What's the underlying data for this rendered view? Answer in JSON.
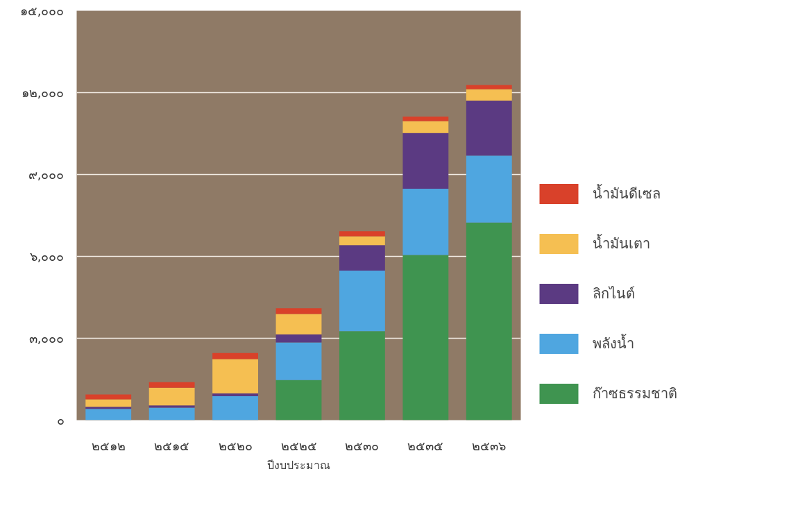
{
  "chart_data": {
    "type": "bar",
    "stacked": true,
    "xlabel": "ปีงบประมาณ",
    "categories": [
      "๒๕๑๒",
      "๒๕๑๕",
      "๒๕๒๐",
      "๒๕๒๕",
      "๒๕๓๐",
      "๒๕๓๕",
      "๒๕๓๖"
    ],
    "series": [
      {
        "name": "ก๊าซธรรมชาติ",
        "color": "#3f9450",
        "values": [
          0,
          0,
          0,
          1470,
          3260,
          6050,
          7240
        ]
      },
      {
        "name": "พลังน้ำ",
        "color": "#4fa6e0",
        "values": [
          410,
          460,
          880,
          1380,
          2220,
          2430,
          2450
        ]
      },
      {
        "name": "ลิกไนต์",
        "color": "#5b3a82",
        "values": [
          80,
          80,
          100,
          290,
          930,
          2040,
          2020
        ]
      },
      {
        "name": "น้ำมันเตา",
        "color": "#f5bf52",
        "values": [
          270,
          650,
          1260,
          750,
          330,
          440,
          420
        ]
      },
      {
        "name": "น้ำมันดีเซล",
        "color": "#d9412a",
        "values": [
          180,
          200,
          220,
          210,
          180,
          160,
          150
        ]
      }
    ],
    "ylim": [
      0,
      15000
    ],
    "yticks": [
      {
        "value": 0,
        "label": "๐"
      },
      {
        "value": 3000,
        "label": "๓,๐๐๐"
      },
      {
        "value": 6000,
        "label": "๖,๐๐๐"
      },
      {
        "value": 9000,
        "label": "๙,๐๐๐"
      },
      {
        "value": 12000,
        "label": "๑๒,๐๐๐"
      },
      {
        "value": 15000,
        "label": "๑๕,๐๐๐"
      }
    ],
    "grid": "y",
    "legend": "right"
  }
}
